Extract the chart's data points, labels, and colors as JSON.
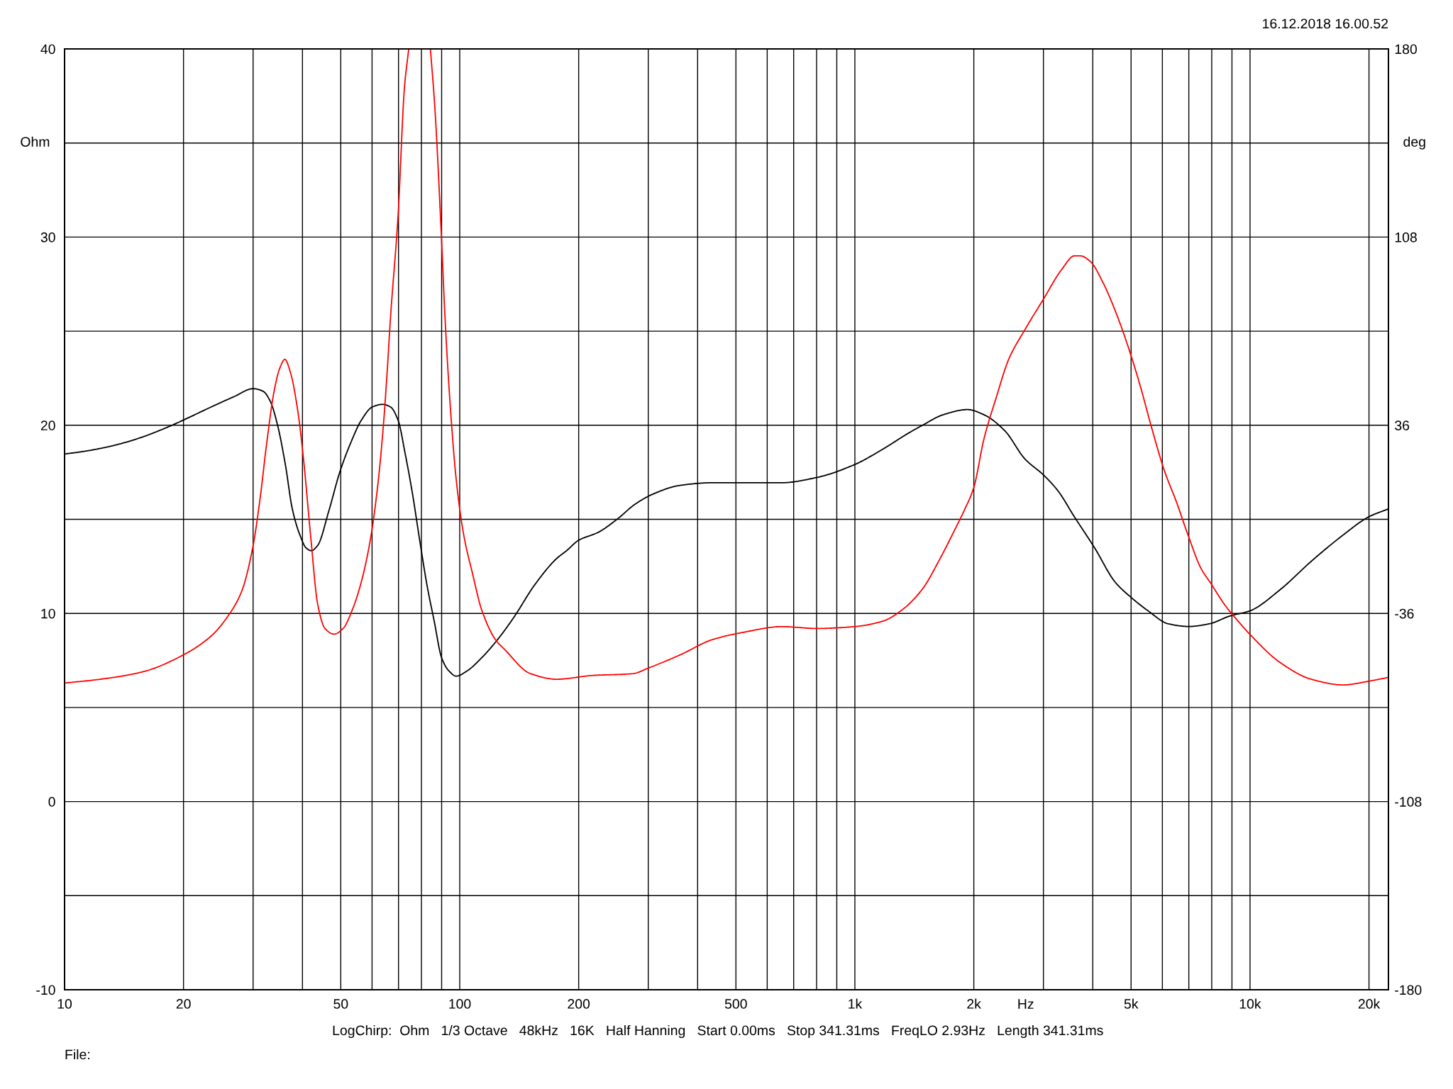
{
  "chart_data": {
    "type": "line",
    "log": "x",
    "grid": true,
    "xlabel": "Hz",
    "ylabel": "Ohm",
    "y2label": "deg",
    "annotations": [
      "16.12.2018 16.00.52",
      "LogChirp:  Ohm   1/3 Octave   48kHz   16K   Half Hanning   Start 0.00ms   Stop 341.31ms   FreqLO 2.93Hz   Length 341.31ms",
      "File:"
    ],
    "xlim": [
      10,
      22400
    ],
    "xticks": [
      10,
      20,
      {
        "value": 30,
        "label": null
      },
      {
        "value": 40,
        "label": null
      },
      50,
      {
        "value": 60,
        "label": null
      },
      {
        "value": 70,
        "label": null
      },
      {
        "value": 80,
        "label": null
      },
      {
        "value": 90,
        "label": null
      },
      100,
      200,
      {
        "value": 300,
        "label": null
      },
      {
        "value": 400,
        "label": null
      },
      500,
      {
        "value": 600,
        "label": null
      },
      {
        "value": 700,
        "label": null
      },
      {
        "value": 800,
        "label": null
      },
      {
        "value": 900,
        "label": null
      },
      {
        "value": 1000,
        "label": "1k"
      },
      {
        "value": 2000,
        "label": "2k"
      },
      {
        "value": 3000,
        "label": null
      },
      {
        "value": 4000,
        "label": null
      },
      {
        "value": 5000,
        "label": "5k"
      },
      {
        "value": 6000,
        "label": null
      },
      {
        "value": 7000,
        "label": null
      },
      {
        "value": 8000,
        "label": null
      },
      {
        "value": 9000,
        "label": null
      },
      {
        "value": 10000,
        "label": "10k"
      },
      {
        "value": 20000,
        "label": "20k"
      }
    ],
    "ylim": [
      -10,
      40
    ],
    "yticks": [
      -10,
      {
        "value": -5,
        "label": null
      },
      0,
      {
        "value": 5,
        "label": null
      },
      10,
      {
        "value": 15,
        "label": null
      },
      20,
      {
        "value": 25,
        "label": null
      },
      30,
      {
        "value": 35,
        "label": null
      },
      40
    ],
    "y2lim": [
      -180,
      180
    ],
    "y2ticks": [
      -180,
      -108,
      -36,
      36,
      108,
      180
    ],
    "series": [
      {
        "color": "#000000",
        "axis": "y2",
        "x": [
          10,
          11.2,
          13.1,
          15.4,
          18.05,
          20,
          23.5,
          26.9,
          30,
          31.8,
          33.2,
          34.6,
          36.2,
          37.7,
          39.4,
          40.9,
          42.1,
          43.7,
          46.6,
          49.7,
          52.9,
          56.4,
          60.1,
          63.8,
          66.8,
          69.8,
          72.8,
          75.9,
          79.2,
          82.6,
          86.2,
          90,
          93.9,
          98,
          104.4,
          113.6,
          123.2,
          136.4,
          154.9,
          175.9,
          186.4,
          200,
          224,
          250,
          279,
          312,
          361,
          435,
          524,
          654,
          800,
          1000,
          1181,
          1367,
          1483,
          1671,
          1928,
          2123,
          2392,
          2697,
          3000,
          3262,
          3592,
          4046,
          4556,
          5012,
          5520,
          6217,
          6998,
          7880,
          8887,
          10000,
          11900,
          14300,
          17200,
          20000,
          22400
        ],
        "values": [
          25,
          26,
          28,
          31,
          35,
          38,
          43,
          47,
          50,
          49,
          45,
          36,
          21,
          4,
          -6,
          -11,
          -12,
          -10,
          3,
          18,
          29,
          38,
          43,
          44,
          43,
          38,
          25,
          10,
          -8,
          -25,
          -39,
          -53,
          -58,
          -60,
          -58,
          -53,
          -47,
          -38,
          -25,
          -15,
          -12,
          -8,
          -5,
          0,
          6,
          10,
          13,
          14,
          14,
          14,
          16,
          21,
          27,
          33,
          36,
          40,
          42,
          40,
          34,
          23,
          17,
          11,
          1,
          -11,
          -24,
          -30,
          -35,
          -40,
          -41,
          -40,
          -37,
          -35,
          -27,
          -16,
          -6,
          1,
          4
        ]
      },
      {
        "color": "#ff0000",
        "x": [
          10,
          12.3,
          15.8,
          20,
          23.5,
          25.8,
          28.1,
          30,
          31.2,
          32.5,
          33.9,
          35,
          36.1,
          37.3,
          38.9,
          40.2,
          42,
          43.7,
          45.6,
          48.1,
          50.7,
          53.5,
          56.4,
          59.5,
          62.1,
          64.1,
          65.5,
          66.8,
          69.8,
          72.5,
          74.3,
          79,
          84.3,
          86.5,
          89.9,
          91.8,
          94.8,
          98,
          102.3,
          107.8,
          113.6,
          123.2,
          129.7,
          151,
          175.9,
          215.8,
          274.4,
          300.6,
          361.5,
          435,
          523.6,
          653.6,
          800,
          1000,
          1181,
          1319,
          1483,
          1632,
          1795,
          1884,
          2000,
          2123,
          2281,
          2450,
          2697,
          3000,
          3343,
          3592,
          3724,
          3945,
          4241,
          4556,
          4893,
          5256,
          5648,
          6068,
          6519,
          6985,
          7511,
          7956,
          8669,
          9500,
          9980,
          11900,
          14300,
          17200,
          20000,
          22400
        ],
        "values": [
          6.3,
          6.5,
          6.9,
          7.8,
          8.8,
          9.8,
          11.2,
          13.6,
          16.0,
          19.1,
          21.8,
          23.0,
          23.5,
          22.8,
          20.8,
          18.3,
          14.0,
          10.5,
          9.2,
          8.9,
          9.2,
          10.2,
          11.7,
          14.0,
          16.9,
          20.0,
          22.8,
          25.7,
          31.1,
          38.0,
          40,
          null,
          40,
          36.9,
          30.0,
          25.7,
          20.8,
          17.1,
          14.2,
          12.1,
          10.2,
          8.6,
          8.1,
          6.8,
          6.5,
          6.7,
          6.8,
          7.1,
          7.8,
          8.6,
          9.0,
          9.3,
          9.2,
          9.3,
          9.6,
          10.2,
          11.3,
          12.8,
          14.5,
          15.4,
          16.7,
          19.3,
          21.5,
          23.5,
          25.1,
          26.7,
          28.3,
          29.0,
          29.0,
          28.7,
          27.6,
          26.1,
          24.3,
          22.2,
          19.8,
          17.6,
          15.9,
          14.1,
          12.4,
          11.6,
          10.4,
          9.4,
          8.9,
          7.4,
          6.5,
          6.2,
          6.4,
          6.6
        ]
      }
    ]
  }
}
